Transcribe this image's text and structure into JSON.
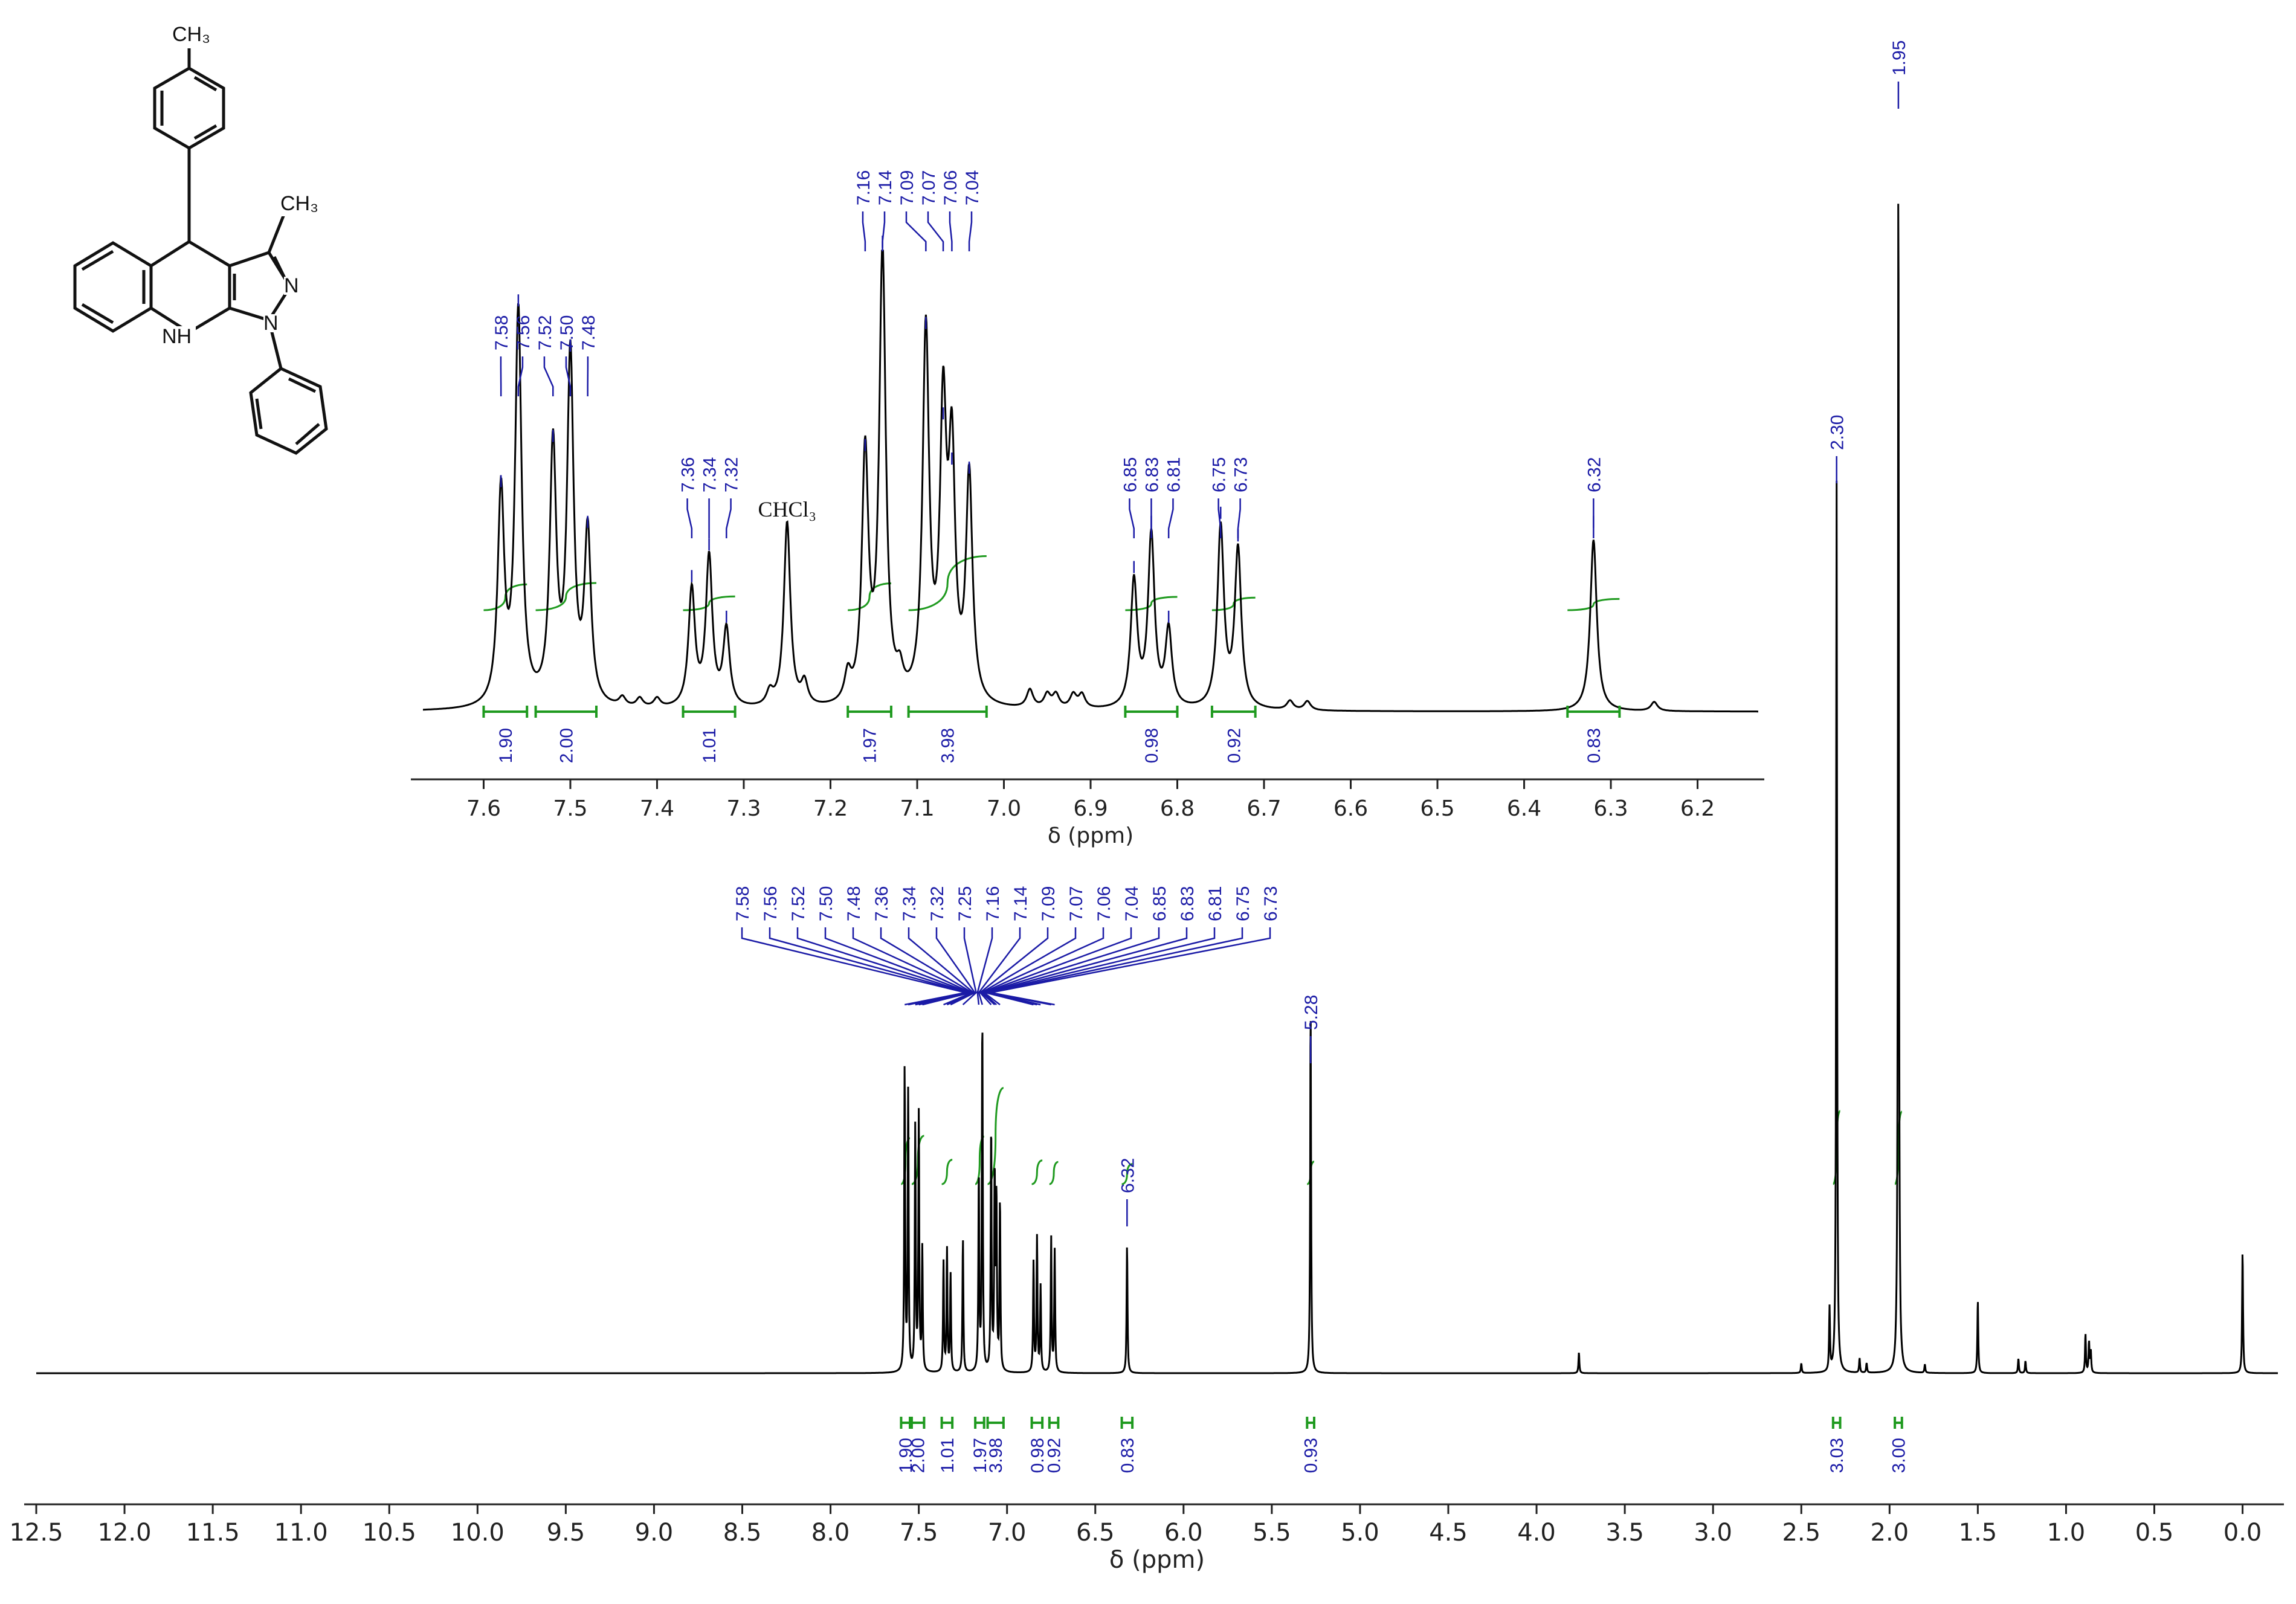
{
  "chart_data": [
    {
      "id": "main",
      "type": "line",
      "title": "",
      "xlabel": "δ (ppm)",
      "ylabel": "",
      "xlim": [
        12.5,
        -0.2
      ],
      "xdirection": "reversed",
      "tick_labels": [
        "12.5",
        "12.0",
        "11.5",
        "11.0",
        "10.5",
        "10.0",
        "9.5",
        "9.0",
        "8.5",
        "8.0",
        "7.5",
        "7.0",
        "6.5",
        "6.0",
        "5.5",
        "5.0",
        "4.5",
        "4.0",
        "3.5",
        "3.0",
        "2.5",
        "2.0",
        "1.5",
        "1.0",
        "0.5",
        "0.0"
      ],
      "grid": false,
      "peaks": [
        {
          "ppm": 7.58,
          "height": 0.25
        },
        {
          "ppm": 7.56,
          "height": 0.23
        },
        {
          "ppm": 7.52,
          "height": 0.2
        },
        {
          "ppm": 7.5,
          "height": 0.21
        },
        {
          "ppm": 7.48,
          "height": 0.1
        },
        {
          "ppm": 7.36,
          "height": 0.09
        },
        {
          "ppm": 7.34,
          "height": 0.1
        },
        {
          "ppm": 7.32,
          "height": 0.08
        },
        {
          "ppm": 7.25,
          "height": 0.11
        },
        {
          "ppm": 7.16,
          "height": 0.16
        },
        {
          "ppm": 7.14,
          "height": 0.29
        },
        {
          "ppm": 7.09,
          "height": 0.2
        },
        {
          "ppm": 7.07,
          "height": 0.16
        },
        {
          "ppm": 7.06,
          "height": 0.14
        },
        {
          "ppm": 7.04,
          "height": 0.14
        },
        {
          "ppm": 6.85,
          "height": 0.09
        },
        {
          "ppm": 6.83,
          "height": 0.11
        },
        {
          "ppm": 6.81,
          "height": 0.07
        },
        {
          "ppm": 6.75,
          "height": 0.11
        },
        {
          "ppm": 6.73,
          "height": 0.1
        },
        {
          "ppm": 6.32,
          "height": 0.105
        },
        {
          "ppm": 5.28,
          "height": 0.3
        },
        {
          "ppm": 3.76,
          "height": 0.017
        },
        {
          "ppm": 2.5,
          "height": 0.008
        },
        {
          "ppm": 2.34,
          "height": 0.052
        },
        {
          "ppm": 2.3,
          "height": 0.73
        },
        {
          "ppm": 2.17,
          "height": 0.012
        },
        {
          "ppm": 2.13,
          "height": 0.008
        },
        {
          "ppm": 1.95,
          "height": 1.0
        },
        {
          "ppm": 1.8,
          "height": 0.007
        },
        {
          "ppm": 1.5,
          "height": 0.06
        },
        {
          "ppm": 1.27,
          "height": 0.012
        },
        {
          "ppm": 1.23,
          "height": 0.01
        },
        {
          "ppm": 0.89,
          "height": 0.032
        },
        {
          "ppm": 0.87,
          "height": 0.025
        },
        {
          "ppm": 0.86,
          "height": 0.018
        },
        {
          "ppm": 0.0,
          "height": 0.1
        }
      ],
      "peak_labels_group": [
        "7.58",
        "7.56",
        "7.52",
        "7.50",
        "7.48",
        "7.36",
        "7.34",
        "7.32",
        "7.25",
        "7.16",
        "7.14",
        "7.09",
        "7.07",
        "7.06",
        "7.04",
        "6.85",
        "6.83",
        "6.81",
        "6.75",
        "6.73"
      ],
      "peak_labels_single": [
        {
          "ppm": 6.32,
          "label": "6.32"
        },
        {
          "ppm": 5.28,
          "label": "5.28"
        },
        {
          "ppm": 2.3,
          "label": "2.30"
        },
        {
          "ppm": 1.95,
          "label": "1.95"
        }
      ],
      "integrals": [
        {
          "from": 7.6,
          "to": 7.55,
          "value": "1.90"
        },
        {
          "from": 7.54,
          "to": 7.47,
          "value": "2.00"
        },
        {
          "from": 7.37,
          "to": 7.31,
          "value": "1.01"
        },
        {
          "from": 7.18,
          "to": 7.13,
          "value": "1.97"
        },
        {
          "from": 7.11,
          "to": 7.02,
          "value": "3.98"
        },
        {
          "from": 6.86,
          "to": 6.8,
          "value": "0.98"
        },
        {
          "from": 6.76,
          "to": 6.71,
          "value": "0.92"
        },
        {
          "from": 6.35,
          "to": 6.29,
          "value": "0.83"
        },
        {
          "from": 5.3,
          "to": 5.26,
          "value": "0.93"
        },
        {
          "from": 2.32,
          "to": 2.28,
          "value": "3.03"
        },
        {
          "from": 1.97,
          "to": 1.93,
          "value": "3.00"
        }
      ]
    },
    {
      "id": "inset",
      "type": "line",
      "title": "",
      "xlabel": "δ (ppm)",
      "ylabel": "",
      "xlim": [
        7.67,
        6.13
      ],
      "xdirection": "reversed",
      "tick_labels": [
        "7.6",
        "7.5",
        "7.4",
        "7.3",
        "7.2",
        "7.1",
        "7.0",
        "6.9",
        "6.8",
        "6.7",
        "6.6",
        "6.5",
        "6.4",
        "6.3",
        "6.2"
      ],
      "grid": false,
      "peaks": [
        {
          "ppm": 7.58,
          "height": 0.47
        },
        {
          "ppm": 7.56,
          "height": 0.87
        },
        {
          "ppm": 7.52,
          "height": 0.57
        },
        {
          "ppm": 7.5,
          "height": 0.77
        },
        {
          "ppm": 7.48,
          "height": 0.38
        },
        {
          "ppm": 7.44,
          "height": 0.02
        },
        {
          "ppm": 7.42,
          "height": 0.02
        },
        {
          "ppm": 7.4,
          "height": 0.02
        },
        {
          "ppm": 7.36,
          "height": 0.26
        },
        {
          "ppm": 7.34,
          "height": 0.33
        },
        {
          "ppm": 7.32,
          "height": 0.17
        },
        {
          "ppm": 7.27,
          "height": 0.03
        },
        {
          "ppm": 7.25,
          "height": 0.41
        },
        {
          "ppm": 7.23,
          "height": 0.05
        },
        {
          "ppm": 7.18,
          "height": 0.06
        },
        {
          "ppm": 7.16,
          "height": 0.55
        },
        {
          "ppm": 7.14,
          "height": 1.0
        },
        {
          "ppm": 7.12,
          "height": 0.05
        },
        {
          "ppm": 7.09,
          "height": 0.82
        },
        {
          "ppm": 7.07,
          "height": 0.62
        },
        {
          "ppm": 7.06,
          "height": 0.52
        },
        {
          "ppm": 7.04,
          "height": 0.5
        },
        {
          "ppm": 6.97,
          "height": 0.04
        },
        {
          "ppm": 6.95,
          "height": 0.03
        },
        {
          "ppm": 6.94,
          "height": 0.03
        },
        {
          "ppm": 6.92,
          "height": 0.03
        },
        {
          "ppm": 6.91,
          "height": 0.03
        },
        {
          "ppm": 6.85,
          "height": 0.28
        },
        {
          "ppm": 6.83,
          "height": 0.38
        },
        {
          "ppm": 6.81,
          "height": 0.17
        },
        {
          "ppm": 6.75,
          "height": 0.4
        },
        {
          "ppm": 6.73,
          "height": 0.35
        },
        {
          "ppm": 6.67,
          "height": 0.02
        },
        {
          "ppm": 6.65,
          "height": 0.02
        },
        {
          "ppm": 6.32,
          "height": 0.38
        },
        {
          "ppm": 6.25,
          "height": 0.02
        }
      ],
      "peak_label_groups": [
        {
          "labels": [
            "7.58",
            "7.56",
            "7.52",
            "7.50",
            "7.48"
          ],
          "ppms": [
            7.58,
            7.56,
            7.52,
            7.5,
            7.48
          ]
        },
        {
          "labels": [
            "7.36",
            "7.34",
            "7.32"
          ],
          "ppms": [
            7.36,
            7.34,
            7.32
          ]
        },
        {
          "labels": [
            "7.16",
            "7.14",
            "7.09",
            "7.07",
            "7.06",
            "7.04"
          ],
          "ppms": [
            7.16,
            7.14,
            7.09,
            7.07,
            7.06,
            7.04
          ]
        },
        {
          "labels": [
            "6.85",
            "6.83",
            "6.81"
          ],
          "ppms": [
            6.85,
            6.83,
            6.81
          ]
        },
        {
          "labels": [
            "6.75",
            "6.73"
          ],
          "ppms": [
            6.75,
            6.73
          ]
        },
        {
          "labels": [
            "6.32"
          ],
          "ppms": [
            6.32
          ]
        }
      ],
      "integrals": [
        {
          "from": 7.6,
          "to": 7.55,
          "value": "1.90"
        },
        {
          "from": 7.54,
          "to": 7.47,
          "value": "2.00"
        },
        {
          "from": 7.37,
          "to": 7.31,
          "value": "1.01"
        },
        {
          "from": 7.18,
          "to": 7.13,
          "value": "1.97"
        },
        {
          "from": 7.11,
          "to": 7.02,
          "value": "3.98"
        },
        {
          "from": 6.86,
          "to": 6.8,
          "value": "0.98"
        },
        {
          "from": 6.76,
          "to": 6.71,
          "value": "0.92"
        },
        {
          "from": 6.35,
          "to": 6.29,
          "value": "0.83"
        }
      ],
      "annotation": {
        "ppm": 7.25,
        "text": "CHCl₃"
      }
    }
  ],
  "structure": {
    "methyl_top": "CH₃",
    "methyl_right": "CH₃",
    "nitrogen_n": "N",
    "nitrogen_n1": "N",
    "nh": "NH"
  },
  "colors": {
    "spectrum": "#000000",
    "labels": "#1a1aa6",
    "integrals": "#1f9a1f"
  }
}
